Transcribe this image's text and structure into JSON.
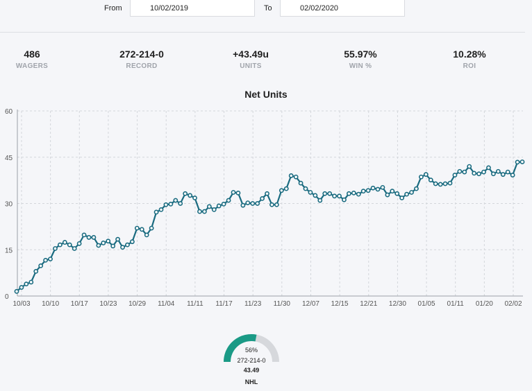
{
  "filters": {
    "from_label": "From",
    "from_value": "10/02/2019",
    "to_label": "To",
    "to_value": "02/02/2020"
  },
  "stats": [
    {
      "value": "486",
      "label": "WAGERS"
    },
    {
      "value": "272-214-0",
      "label": "RECORD"
    },
    {
      "value": "+43.49u",
      "label": "UNITS"
    },
    {
      "value": "55.97%",
      "label": "WIN %"
    },
    {
      "value": "10.28%",
      "label": "ROI"
    }
  ],
  "colors": {
    "line": "#1a6b80",
    "gauge_fill": "#1a9a86",
    "gauge_track": "#d6d8dc",
    "grid": "#d3d6db"
  },
  "chart_data": {
    "type": "line",
    "title": "Net Units",
    "xlabel": "",
    "ylabel": "",
    "ylim": [
      0,
      60
    ],
    "yticks": [
      0,
      15,
      30,
      45,
      60
    ],
    "ytick_labels": [
      "0",
      "15",
      "30",
      "45",
      "60"
    ],
    "xtick_labels": [
      "10/03",
      "10/10",
      "10/17",
      "10/23",
      "10/29",
      "11/04",
      "11/11",
      "11/17",
      "11/23",
      "11/30",
      "12/07",
      "12/15",
      "12/21",
      "12/30",
      "01/05",
      "01/11",
      "01/20",
      "02/02"
    ],
    "series": [
      {
        "name": "Net Units",
        "values": [
          1.5,
          2.8,
          3.9,
          4.5,
          8,
          9.8,
          11.6,
          12,
          15.4,
          16.6,
          17.4,
          16.6,
          15.4,
          17,
          19.8,
          19,
          19,
          16.4,
          17.2,
          17.8,
          16.2,
          18.4,
          15.8,
          16.6,
          17.6,
          22,
          21.6,
          19.8,
          22,
          27.2,
          28,
          29.6,
          29.8,
          31,
          30,
          33.2,
          32.6,
          31.8,
          27.4,
          27.4,
          29,
          28,
          29.2,
          29.8,
          31,
          33.6,
          33.4,
          29.4,
          30.2,
          30,
          30,
          31.6,
          33.2,
          29.6,
          29.6,
          34.2,
          34.8,
          39,
          38.6,
          36.6,
          34.8,
          33.6,
          32.6,
          31,
          33.2,
          33.2,
          32.4,
          32.4,
          31.2,
          33.2,
          33.4,
          33,
          34,
          34.2,
          35,
          34.6,
          35.2,
          32.8,
          34,
          33.2,
          31.8,
          33,
          33.6,
          34.8,
          38.6,
          39.4,
          37.6,
          36.4,
          36.2,
          36.4,
          36.6,
          39.2,
          40.4,
          40.2,
          42,
          39.8,
          39.6,
          40.2,
          41.6,
          39.6,
          40.4,
          39.4,
          40.2,
          39.2,
          43.4,
          43.49
        ]
      }
    ]
  },
  "gauge": {
    "percent_label": "56%",
    "win_fraction": 0.5597,
    "record": "272-214-0",
    "units": "43.49",
    "league": "NHL"
  }
}
